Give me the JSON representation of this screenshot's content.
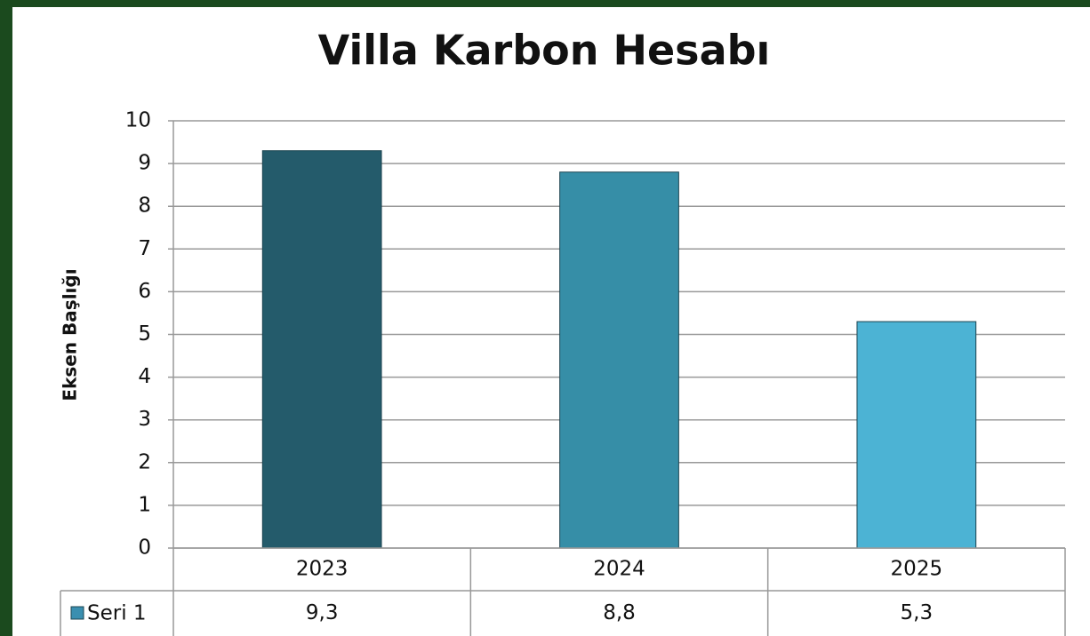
{
  "chart_data": {
    "type": "bar",
    "title": "Villa Karbon Hesabı",
    "y_axis_label": "Eksen Başlığı",
    "categories": [
      "2023",
      "2024",
      "2025"
    ],
    "series": [
      {
        "name": "Seri 1",
        "color": "#3a8fb0",
        "colors": [
          "#245b6b",
          "#368ea7",
          "#4cb3d4"
        ],
        "values": [
          9.3,
          8.8,
          5.3
        ],
        "value_labels": [
          "9,3",
          "8,8",
          "5,3"
        ]
      }
    ],
    "ylim": [
      0,
      10
    ],
    "yticks": [
      0,
      1,
      2,
      3,
      4,
      5,
      6,
      7,
      8,
      9,
      10
    ],
    "grid": true,
    "data_table": true
  }
}
